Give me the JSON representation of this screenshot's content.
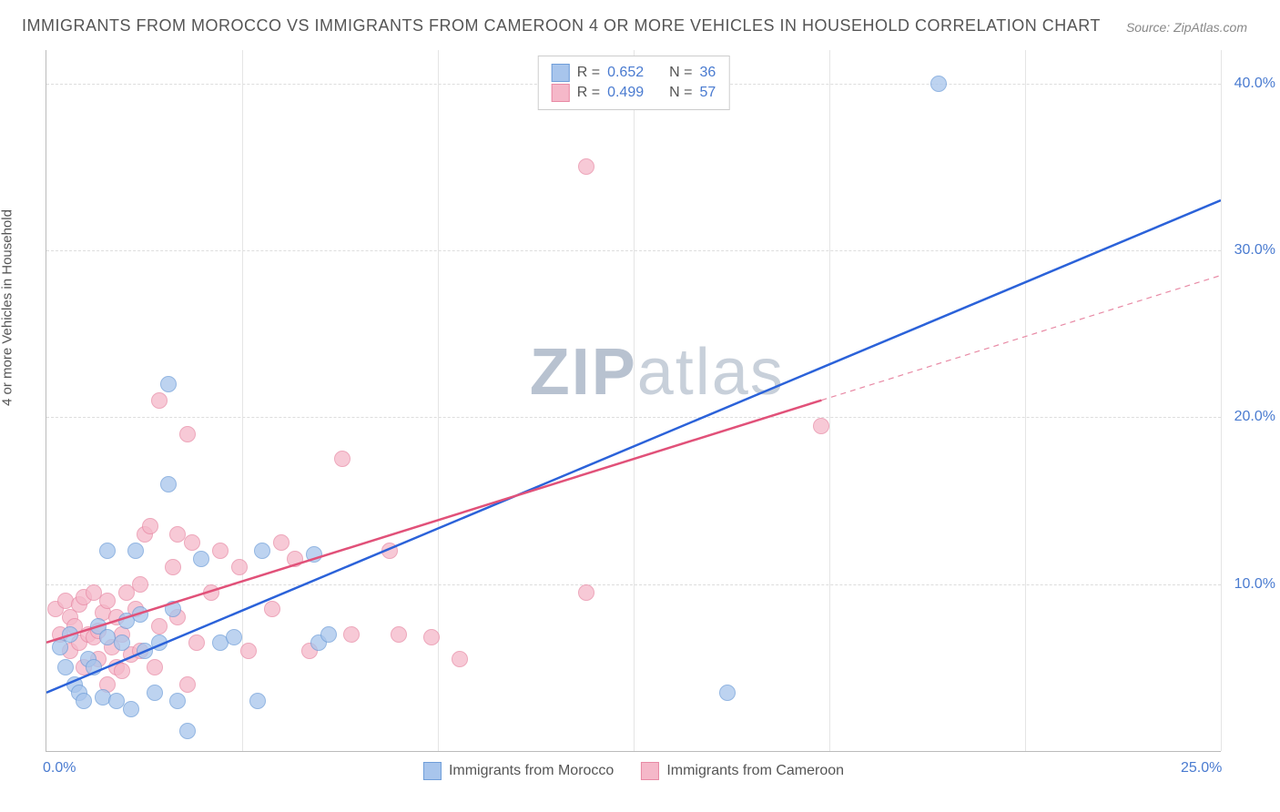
{
  "title": "IMMIGRANTS FROM MOROCCO VS IMMIGRANTS FROM CAMEROON 4 OR MORE VEHICLES IN HOUSEHOLD CORRELATION CHART",
  "source": "Source: ZipAtlas.com",
  "watermark_a": "ZIP",
  "watermark_b": "atlas",
  "y_axis_label": "4 or more Vehicles in Household",
  "chart": {
    "type": "scatter",
    "xlim": [
      0,
      25
    ],
    "ylim": [
      0,
      42
    ],
    "x_ticks": [
      0,
      4.17,
      8.33,
      12.5,
      16.67,
      20.83,
      25
    ],
    "x_tick_labels": {
      "0": "0.0%",
      "25": "25.0%"
    },
    "y_ticks": [
      10,
      20,
      30,
      40
    ],
    "y_tick_labels": {
      "10": "10.0%",
      "20": "20.0%",
      "30": "30.0%",
      "40": "40.0%"
    },
    "background": "#ffffff",
    "grid_color": "#dddddd"
  },
  "series": {
    "morocco": {
      "label": "Immigrants from Morocco",
      "color_fill": "#a8c5ec",
      "color_stroke": "#6f9ed9",
      "line_color": "#2b62d9",
      "line_width": 2.5,
      "line_solid": true,
      "R_label": "R =",
      "R": "0.652",
      "N_label": "N =",
      "N": "36",
      "regression": {
        "x1": 0,
        "y1": 3.5,
        "x2": 25,
        "y2": 33.0
      },
      "points": [
        [
          0.3,
          6.2
        ],
        [
          0.4,
          5.0
        ],
        [
          0.5,
          7.0
        ],
        [
          0.6,
          4.0
        ],
        [
          0.7,
          3.5
        ],
        [
          0.8,
          3.0
        ],
        [
          0.9,
          5.5
        ],
        [
          1.0,
          5.0
        ],
        [
          1.1,
          7.5
        ],
        [
          1.2,
          3.2
        ],
        [
          1.3,
          6.8
        ],
        [
          1.3,
          12.0
        ],
        [
          1.5,
          3.0
        ],
        [
          1.6,
          6.5
        ],
        [
          1.7,
          7.8
        ],
        [
          1.8,
          2.5
        ],
        [
          1.9,
          12.0
        ],
        [
          2.0,
          8.2
        ],
        [
          2.1,
          6.0
        ],
        [
          2.3,
          3.5
        ],
        [
          2.4,
          6.5
        ],
        [
          2.6,
          22.0
        ],
        [
          2.6,
          16.0
        ],
        [
          2.7,
          8.5
        ],
        [
          2.8,
          3.0
        ],
        [
          3.0,
          1.2
        ],
        [
          3.3,
          11.5
        ],
        [
          3.7,
          6.5
        ],
        [
          4.0,
          6.8
        ],
        [
          4.5,
          3.0
        ],
        [
          4.6,
          12.0
        ],
        [
          5.7,
          11.8
        ],
        [
          5.8,
          6.5
        ],
        [
          6.0,
          7.0
        ],
        [
          14.5,
          3.5
        ],
        [
          19.0,
          40.0
        ]
      ]
    },
    "cameroon": {
      "label": "Immigrants from Cameroon",
      "color_fill": "#f5b8c9",
      "color_stroke": "#e88aa5",
      "line_color": "#e15179",
      "line_width": 2.5,
      "line_solid_end": 16.5,
      "dash_end": 25,
      "R_label": "R =",
      "R": "0.499",
      "N_label": "N =",
      "N": "57",
      "regression": {
        "x1": 0,
        "y1": 6.5,
        "x2": 25,
        "y2": 28.5
      },
      "points": [
        [
          0.2,
          8.5
        ],
        [
          0.3,
          7.0
        ],
        [
          0.4,
          9.0
        ],
        [
          0.5,
          6.0
        ],
        [
          0.5,
          8.0
        ],
        [
          0.6,
          7.5
        ],
        [
          0.7,
          6.5
        ],
        [
          0.7,
          8.8
        ],
        [
          0.8,
          5.0
        ],
        [
          0.8,
          9.2
        ],
        [
          0.9,
          7.0
        ],
        [
          1.0,
          9.5
        ],
        [
          1.0,
          6.8
        ],
        [
          1.1,
          7.2
        ],
        [
          1.1,
          5.5
        ],
        [
          1.2,
          8.3
        ],
        [
          1.3,
          4.0
        ],
        [
          1.3,
          9.0
        ],
        [
          1.4,
          6.2
        ],
        [
          1.5,
          5.0
        ],
        [
          1.5,
          8.0
        ],
        [
          1.6,
          7.0
        ],
        [
          1.6,
          4.8
        ],
        [
          1.7,
          9.5
        ],
        [
          1.8,
          5.8
        ],
        [
          1.9,
          8.5
        ],
        [
          2.0,
          6.0
        ],
        [
          2.0,
          10.0
        ],
        [
          2.1,
          13.0
        ],
        [
          2.2,
          13.5
        ],
        [
          2.3,
          5.0
        ],
        [
          2.4,
          7.5
        ],
        [
          2.4,
          21.0
        ],
        [
          2.7,
          11.0
        ],
        [
          2.8,
          8.0
        ],
        [
          2.8,
          13.0
        ],
        [
          3.0,
          19.0
        ],
        [
          3.0,
          4.0
        ],
        [
          3.1,
          12.5
        ],
        [
          3.2,
          6.5
        ],
        [
          3.5,
          9.5
        ],
        [
          3.7,
          12.0
        ],
        [
          4.1,
          11.0
        ],
        [
          4.3,
          6.0
        ],
        [
          4.8,
          8.5
        ],
        [
          5.0,
          12.5
        ],
        [
          5.3,
          11.5
        ],
        [
          5.6,
          6.0
        ],
        [
          6.3,
          17.5
        ],
        [
          6.5,
          7.0
        ],
        [
          7.3,
          12.0
        ],
        [
          7.5,
          7.0
        ],
        [
          8.2,
          6.8
        ],
        [
          8.8,
          5.5
        ],
        [
          11.5,
          9.5
        ],
        [
          11.5,
          35.0
        ],
        [
          16.5,
          19.5
        ]
      ]
    }
  }
}
